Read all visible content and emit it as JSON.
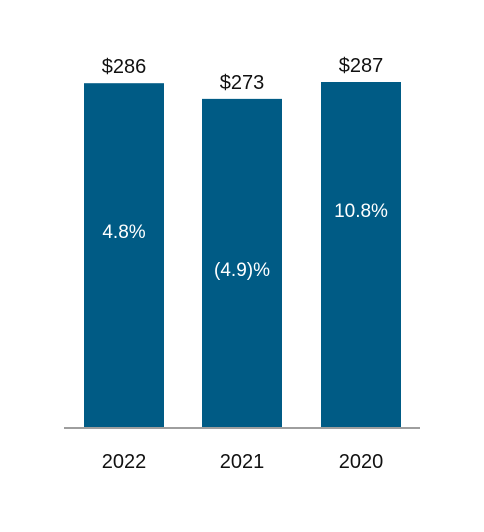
{
  "chart_data": {
    "type": "bar",
    "categories": [
      "2022",
      "2021",
      "2020"
    ],
    "values": [
      286,
      273,
      287
    ],
    "value_labels": [
      "$286",
      "$273",
      "$287"
    ],
    "inner_labels": [
      "4.8%",
      "(4.9)%",
      "10.8%"
    ],
    "title": "",
    "xlabel": "",
    "ylabel": "",
    "ylim": [
      0,
      287
    ],
    "grid": false,
    "legend": "none",
    "colors": {
      "bar": "#005b85",
      "baseline": "#9e9e9e",
      "text": "#111111",
      "inner_text": "#ffffff"
    }
  }
}
